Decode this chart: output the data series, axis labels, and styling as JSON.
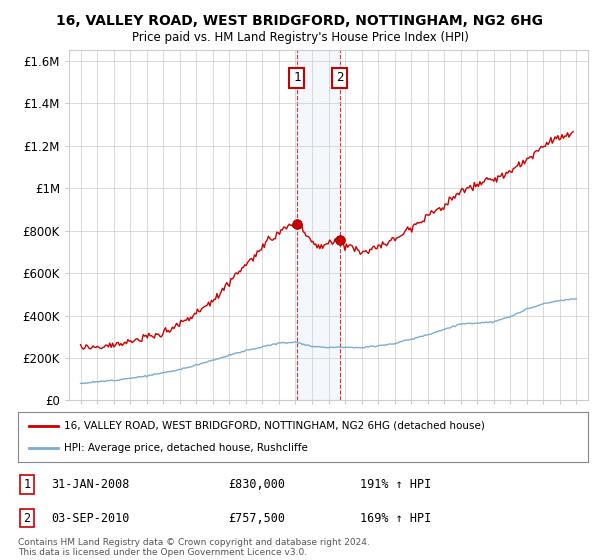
{
  "title": "16, VALLEY ROAD, WEST BRIDGFORD, NOTTINGHAM, NG2 6HG",
  "subtitle": "Price paid vs. HM Land Registry's House Price Index (HPI)",
  "legend_property": "16, VALLEY ROAD, WEST BRIDGFORD, NOTTINGHAM, NG2 6HG (detached house)",
  "legend_hpi": "HPI: Average price, detached house, Rushcliffe",
  "footnote": "Contains HM Land Registry data © Crown copyright and database right 2024.\nThis data is licensed under the Open Government Licence v3.0.",
  "sale1_date": "31-JAN-2008",
  "sale1_price": 830000,
  "sale1_label": "1",
  "sale1_pct": "191% ↑ HPI",
  "sale2_date": "03-SEP-2010",
  "sale2_price": 757500,
  "sale2_label": "2",
  "sale2_pct": "169% ↑ HPI",
  "property_color": "#cc0000",
  "hpi_color": "#7aadd4",
  "background_color": "#ffffff",
  "grid_color": "#cccccc",
  "ylim": [
    0,
    1650000
  ],
  "yticks": [
    0,
    200000,
    400000,
    600000,
    800000,
    1000000,
    1200000,
    1400000,
    1600000
  ],
  "ytick_labels": [
    "£0",
    "£200K",
    "£400K",
    "£600K",
    "£800K",
    "£1M",
    "£1.2M",
    "£1.4M",
    "£1.6M"
  ],
  "sale1_year": 2008.083,
  "sale2_year": 2010.667
}
